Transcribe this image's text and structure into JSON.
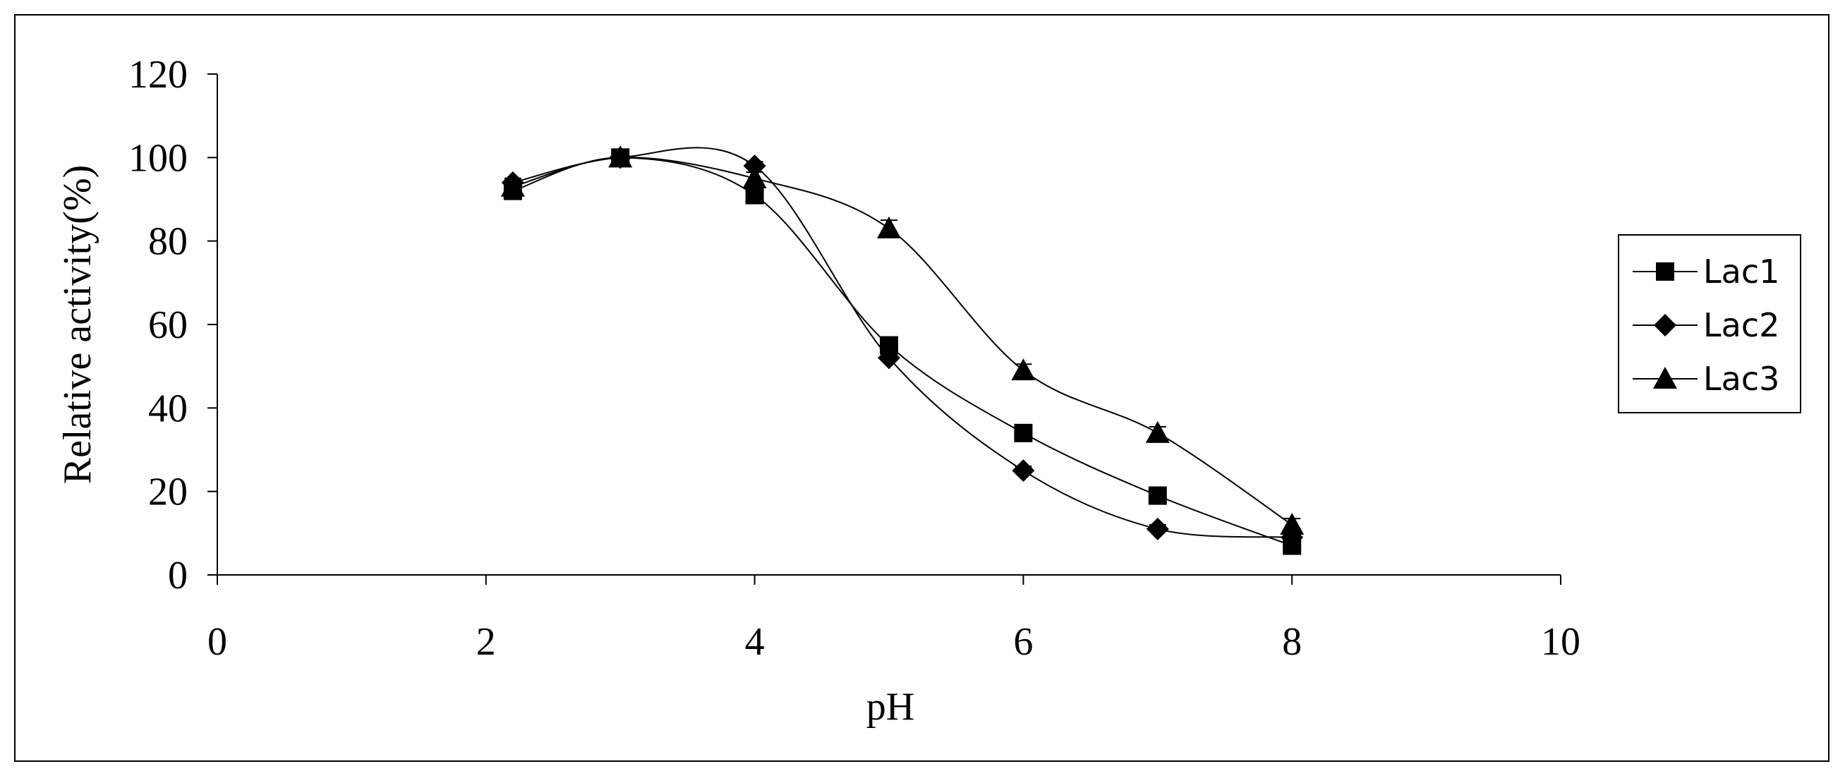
{
  "chart_data": {
    "type": "line",
    "xlabel": "pH",
    "ylabel": "Relative activity(%)",
    "xlim": [
      0,
      10
    ],
    "ylim": [
      0,
      120
    ],
    "x_ticks": [
      0,
      2,
      4,
      6,
      8,
      10
    ],
    "y_ticks": [
      0,
      20,
      40,
      60,
      80,
      100,
      120
    ],
    "grid": false,
    "legend_position": "right",
    "series": [
      {
        "name": "Lac1",
        "marker": "square",
        "x": [
          2.2,
          3,
          4,
          5,
          6,
          7,
          8
        ],
        "y": [
          92,
          100,
          91,
          55,
          34,
          19,
          7
        ],
        "err": [
          1.5,
          2,
          2,
          1.5,
          1,
          1,
          1
        ]
      },
      {
        "name": "Lac2",
        "marker": "diamond",
        "x": [
          2.2,
          3,
          4,
          5,
          6,
          7,
          8
        ],
        "y": [
          94,
          100,
          98,
          52,
          25,
          11,
          9
        ],
        "err": [
          1,
          1,
          1,
          1,
          1,
          1,
          1
        ]
      },
      {
        "name": "Lac3",
        "marker": "triangle",
        "x": [
          2.2,
          3,
          4,
          5,
          6,
          7,
          8
        ],
        "y": [
          93,
          100,
          95,
          83,
          49,
          34,
          12
        ],
        "err": [
          1,
          1.5,
          1.5,
          2,
          1.5,
          1.5,
          1.5
        ]
      }
    ],
    "colors": {
      "line": "#000000",
      "marker": "#000000",
      "background": "#ffffff"
    }
  }
}
